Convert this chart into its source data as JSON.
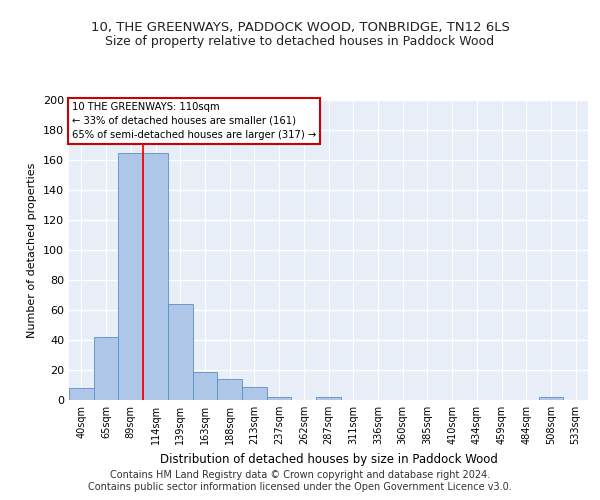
{
  "title": "10, THE GREENWAYS, PADDOCK WOOD, TONBRIDGE, TN12 6LS",
  "subtitle": "Size of property relative to detached houses in Paddock Wood",
  "xlabel": "Distribution of detached houses by size in Paddock Wood",
  "ylabel": "Number of detached properties",
  "categories": [
    "40sqm",
    "65sqm",
    "89sqm",
    "114sqm",
    "139sqm",
    "163sqm",
    "188sqm",
    "213sqm",
    "237sqm",
    "262sqm",
    "287sqm",
    "311sqm",
    "336sqm",
    "360sqm",
    "385sqm",
    "410sqm",
    "434sqm",
    "459sqm",
    "484sqm",
    "508sqm",
    "533sqm"
  ],
  "values": [
    8,
    42,
    165,
    165,
    64,
    19,
    14,
    9,
    2,
    0,
    2,
    0,
    0,
    0,
    0,
    0,
    0,
    0,
    0,
    2,
    0
  ],
  "bar_color": "#aec6e8",
  "bar_edge_color": "#5a8fc4",
  "background_color": "#e8eef8",
  "grid_color": "#ffffff",
  "red_line_x": 2.5,
  "annotation_text": "10 THE GREENWAYS: 110sqm\n← 33% of detached houses are smaller (161)\n65% of semi-detached houses are larger (317) →",
  "annotation_box_color": "#ffffff",
  "annotation_box_edge": "#cc0000",
  "footer": "Contains HM Land Registry data © Crown copyright and database right 2024.\nContains public sector information licensed under the Open Government Licence v3.0.",
  "ylim": [
    0,
    200
  ],
  "yticks": [
    0,
    20,
    40,
    60,
    80,
    100,
    120,
    140,
    160,
    180,
    200
  ],
  "title_fontsize": 9.5,
  "subtitle_fontsize": 9,
  "ylabel_fontsize": 8,
  "xlabel_fontsize": 8.5
}
